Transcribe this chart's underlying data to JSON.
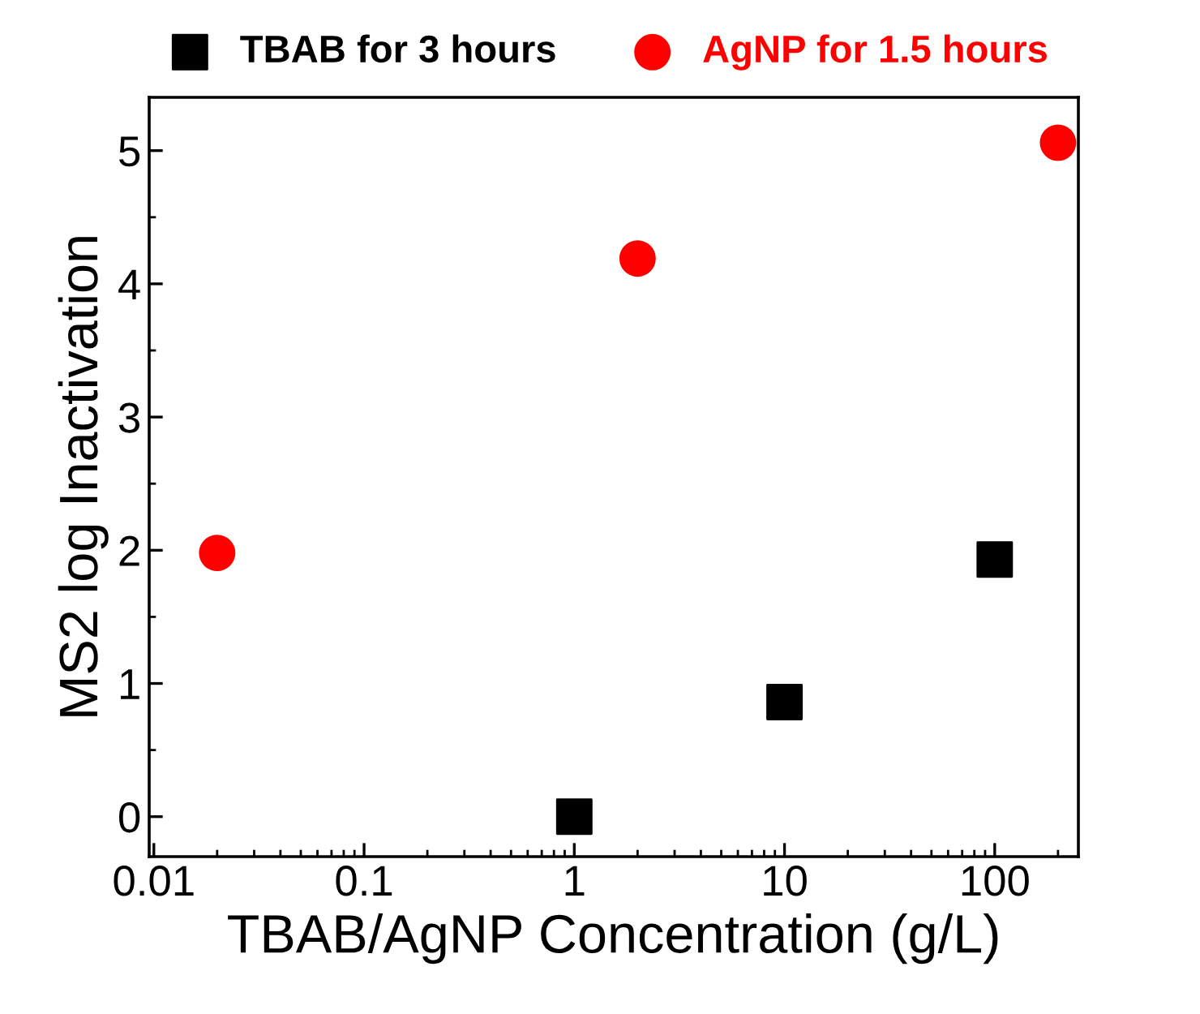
{
  "chart_data": {
    "type": "scatter",
    "xlabel": "TBAB/AgNP Concentration (g/L)",
    "ylabel": "MS2 log Inactivation",
    "log": "x",
    "xlim": [
      0.0095,
      250
    ],
    "xticks": [
      {
        "value": 0.01,
        "label": "0.01"
      },
      {
        "value": 0.1,
        "label": "0.1"
      },
      {
        "value": 1,
        "label": "1"
      },
      {
        "value": 10,
        "label": "10"
      },
      {
        "value": 100,
        "label": "100"
      }
    ],
    "ylim": [
      -0.3,
      5.4
    ],
    "yticks": [
      0,
      1,
      2,
      3,
      4,
      5
    ],
    "legend": "top",
    "grid": false,
    "series": [
      {
        "name": "TBAB for 3 hours",
        "color": "#000000",
        "marker": "square",
        "x": [
          1,
          10,
          100
        ],
        "values": [
          0,
          0.86,
          1.93
        ]
      },
      {
        "name": "AgNP for 1.5 hours",
        "color": "#ff0000",
        "marker": "circle",
        "x": [
          0.02,
          2,
          200
        ],
        "values": [
          1.98,
          4.19,
          5.06
        ]
      }
    ]
  }
}
